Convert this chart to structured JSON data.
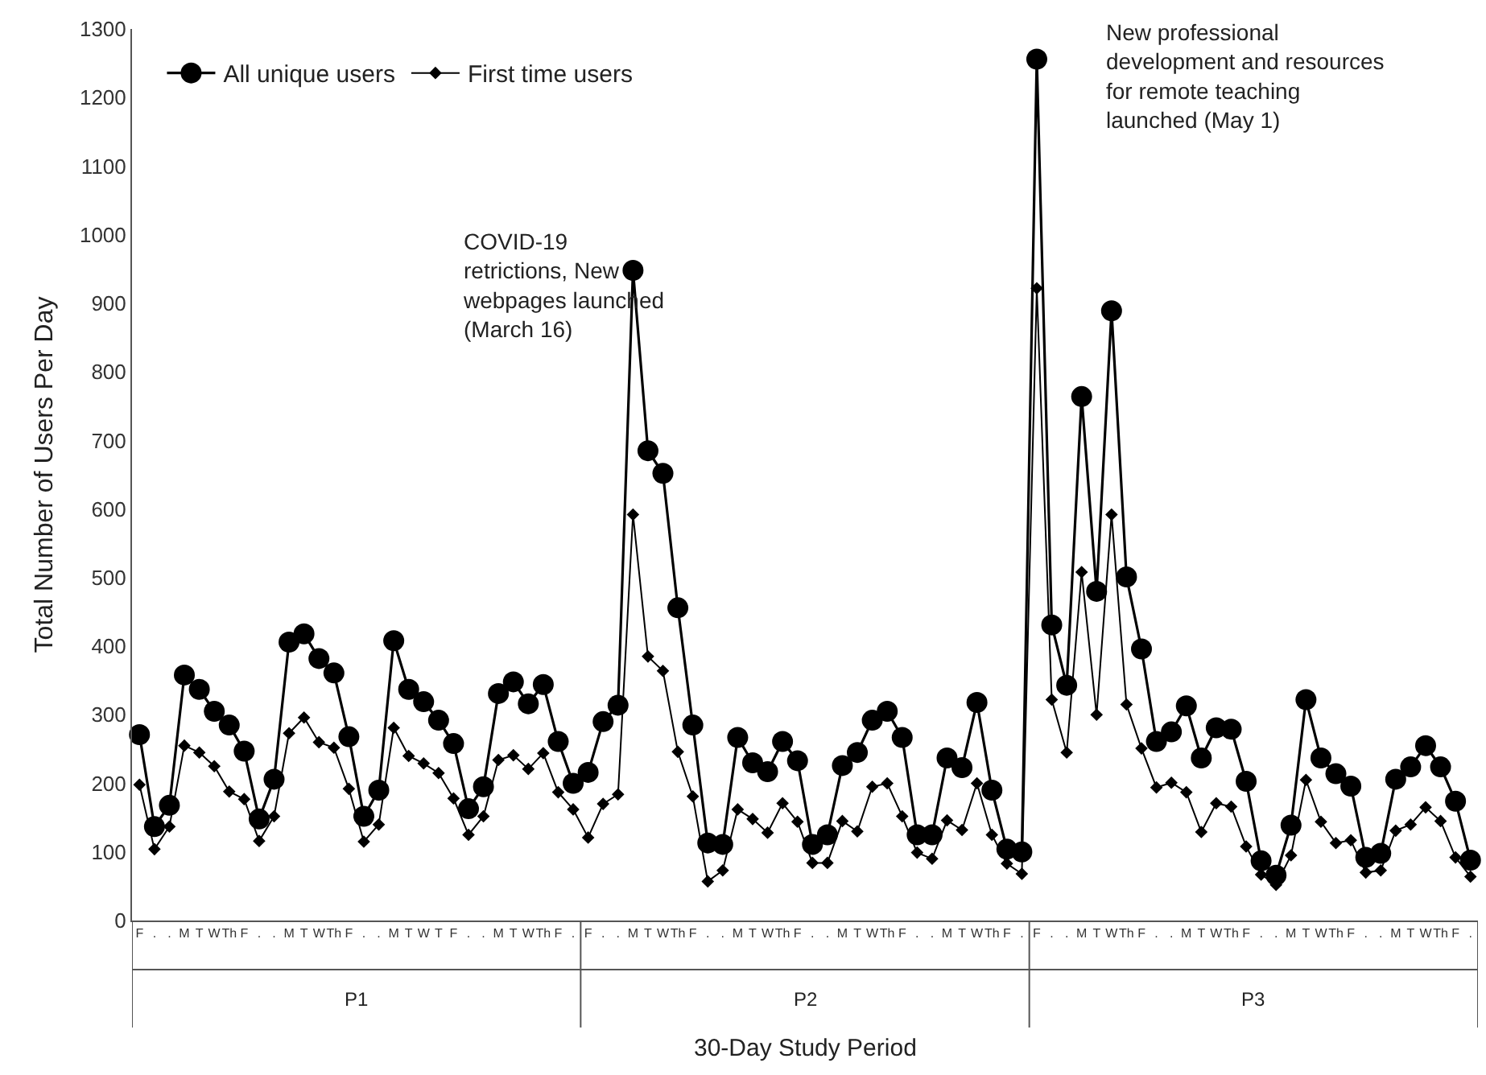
{
  "chart_data": {
    "type": "line",
    "xlabel": "30-Day Study Period",
    "ylabel": "Total Number of Users Per Day",
    "categories": [
      "F",
      ".",
      ".",
      "M",
      "T",
      "W",
      "Th",
      "F",
      ".",
      ".",
      "M",
      "T",
      "W",
      "Th",
      "F",
      ".",
      ".",
      "M",
      "T",
      "W",
      "T",
      "F",
      ".",
      ".",
      "M",
      "T",
      "W",
      "Th",
      "F",
      ".",
      "F",
      ".",
      ".",
      "M",
      "T",
      "W",
      "Th",
      "F",
      ".",
      ".",
      "M",
      "T",
      "W",
      "Th",
      "F",
      ".",
      ".",
      "M",
      "T",
      "W",
      "Th",
      "F",
      ".",
      ".",
      "M",
      "T",
      "W",
      "Th",
      "F",
      ".",
      "F",
      ".",
      ".",
      "M",
      "T",
      "W",
      "Th",
      "F",
      ".",
      ".",
      "M",
      "T",
      "W",
      "Th",
      "F",
      ".",
      ".",
      "M",
      "T",
      "W",
      "Th",
      "F",
      ".",
      ".",
      "M",
      "T",
      "W",
      "Th",
      "F",
      "."
    ],
    "series": [
      {
        "name": "All unique users",
        "color": "#000000",
        "marker": "circle",
        "values": [
          271,
          137,
          168,
          358,
          337,
          305,
          285,
          247,
          148,
          206,
          406,
          418,
          382,
          361,
          268,
          152,
          190,
          408,
          337,
          319,
          292,
          258,
          163,
          195,
          331,
          348,
          316,
          344,
          261,
          200,
          216,
          290,
          314,
          948,
          685,
          652,
          456,
          285,
          113,
          111,
          267,
          230,
          217,
          261,
          233,
          111,
          125,
          226,
          245,
          292,
          305,
          267,
          125,
          125,
          237,
          223,
          318,
          190,
          104,
          100,
          1256,
          431,
          343,
          764,
          480,
          889,
          501,
          396,
          261,
          275,
          313,
          237,
          281,
          279,
          203,
          87,
          66,
          139,
          322,
          237,
          214,
          196,
          92,
          98,
          206,
          224,
          255,
          224,
          174,
          88
        ]
      },
      {
        "name": "First time users",
        "color": "#000000",
        "marker": "diamond",
        "values": [
          198,
          104,
          137,
          255,
          245,
          225,
          188,
          177,
          116,
          152,
          273,
          296,
          260,
          252,
          192,
          115,
          140,
          281,
          240,
          229,
          215,
          178,
          125,
          152,
          234,
          241,
          221,
          244,
          187,
          162,
          121,
          170,
          184,
          592,
          385,
          364,
          246,
          181,
          57,
          73,
          162,
          148,
          128,
          171,
          144,
          84,
          84,
          145,
          130,
          195,
          200,
          152,
          99,
          90,
          146,
          132,
          200,
          125,
          83,
          68,
          922,
          322,
          245,
          508,
          300,
          592,
          315,
          251,
          194,
          201,
          187,
          129,
          171,
          166,
          108,
          67,
          52,
          95,
          205,
          144,
          113,
          117,
          70,
          73,
          131,
          140,
          165,
          145,
          92,
          64
        ]
      }
    ],
    "ylim": [
      0,
      1300
    ],
    "yticks": [
      0,
      100,
      200,
      300,
      400,
      500,
      600,
      700,
      800,
      900,
      1000,
      1100,
      1200,
      1300
    ],
    "grid": false,
    "legend": "top left",
    "annotations": [
      "COVID-19\nretrictions, New\nwebpages launched\n(March 16)",
      "New professional\ndevelopment and resources\nfor remote teaching\nlaunched (May 1)",
      "P1",
      "P2",
      "P3"
    ]
  }
}
